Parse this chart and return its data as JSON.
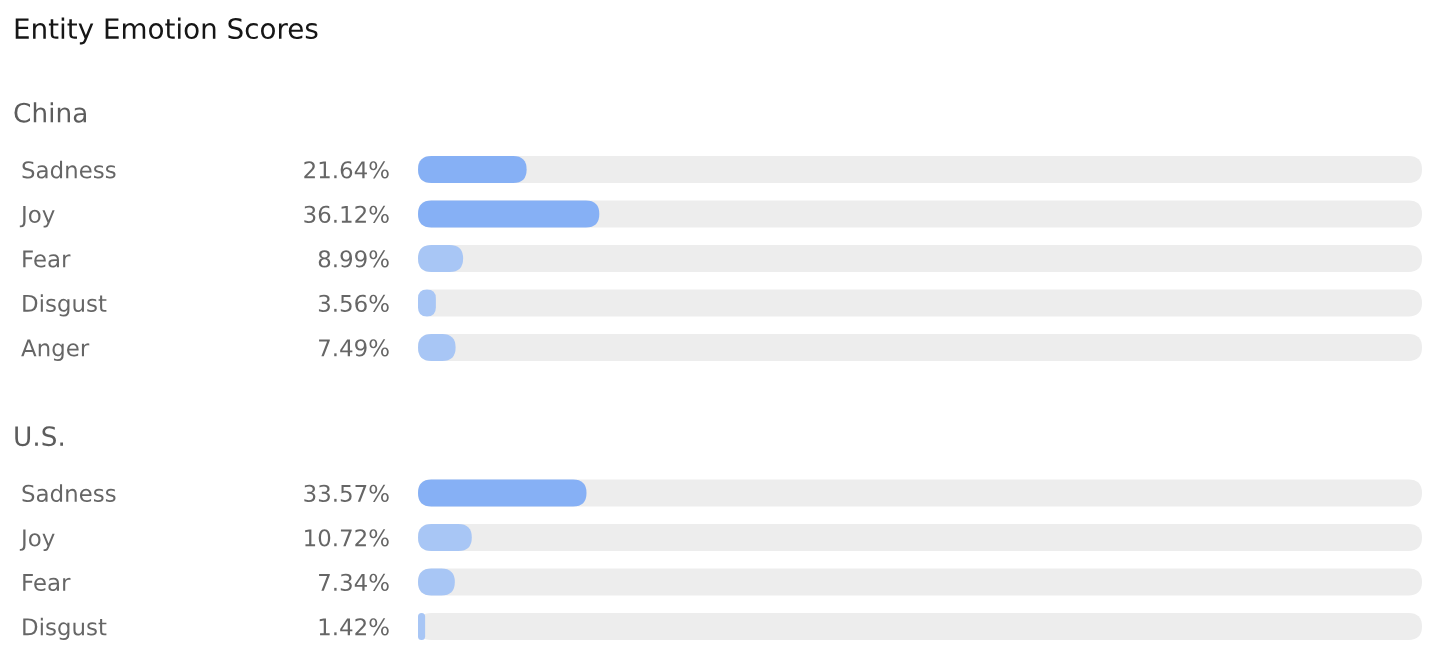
{
  "chart_data": [
    {
      "type": "bar",
      "orientation": "horizontal",
      "title": "Entity Emotion Scores",
      "subtitle": "China",
      "categories": [
        "Sadness",
        "Joy",
        "Fear",
        "Disgust",
        "Anger"
      ],
      "values": [
        21.64,
        36.12,
        8.99,
        3.56,
        7.49
      ],
      "value_labels": [
        "21.64%",
        "36.12%",
        "8.99%",
        "3.56%",
        "7.49%"
      ],
      "colors": [
        "#86b0f5",
        "#86b0f5",
        "#a8c6f5",
        "#a8c6f5",
        "#a8c6f5"
      ],
      "xlim": [
        0,
        200
      ],
      "tick_labels": "y"
    },
    {
      "type": "bar",
      "orientation": "horizontal",
      "title": "U.S.",
      "categories": [
        "Sadness",
        "Joy",
        "Fear",
        "Disgust"
      ],
      "values": [
        33.57,
        10.72,
        7.34,
        1.42
      ],
      "value_labels": [
        "33.57%",
        "10.72%",
        "7.34%",
        "1.42%"
      ],
      "colors": [
        "#86b0f5",
        "#a8c6f5",
        "#a8c6f5",
        "#a8c6f5"
      ],
      "xlim": [
        0,
        200
      ],
      "tick_labels": "y"
    }
  ]
}
